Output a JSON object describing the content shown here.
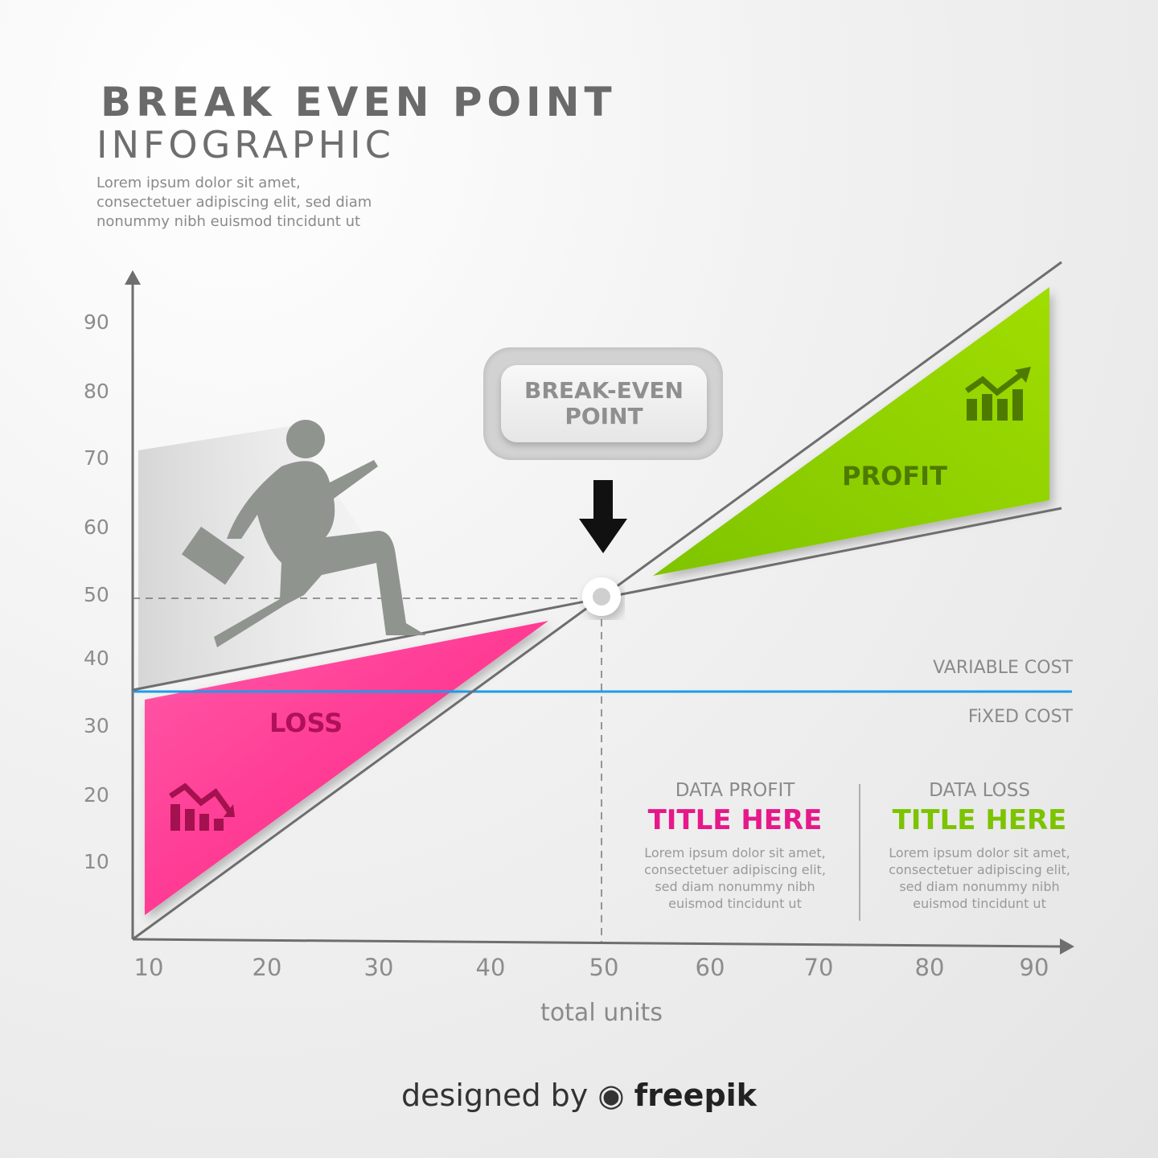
{
  "header": {
    "title": "BREAK EVEN POINT",
    "subtitle": "INFOGRAPHIC",
    "intro": "Lorem ipsum dolor sit amet, consectetuer adipiscing elit, sed diam nonummy nibh euismod tincidunt ut"
  },
  "chart_data": {
    "type": "line",
    "xlabel": "total units",
    "ylabel": "",
    "x_ticks": [
      "10",
      "20",
      "30",
      "40",
      "50",
      "60",
      "70",
      "80",
      "90"
    ],
    "y_ticks": [
      "10",
      "20",
      "30",
      "40",
      "50",
      "60",
      "70",
      "80",
      "90"
    ],
    "xlim": [
      10,
      90
    ],
    "ylim": [
      0,
      90
    ],
    "series": [
      {
        "key": "revenue",
        "x": [
          10,
          90
        ],
        "y": [
          0,
          95
        ]
      },
      {
        "key": "cost",
        "x": [
          10,
          90
        ],
        "y": [
          36,
          61
        ]
      },
      {
        "name": "FiXED COST",
        "x": [
          10,
          90
        ],
        "y": [
          36,
          36
        ]
      }
    ],
    "break_even": {
      "x": 50,
      "y": 50,
      "label": "BREAK-EVEN\nPOINT"
    },
    "line_labels": {
      "variable": "VARIABLE COST",
      "fixed": "FiXED COST"
    },
    "regions": {
      "loss": "LOSS",
      "profit": "PROFIT"
    },
    "colors": {
      "loss": "#ff2d8a",
      "profit": "#8ccc00",
      "fixed": "#1e9be8",
      "line": "#6e6e6e"
    }
  },
  "blocks": [
    {
      "heading": "DATA PROFIT",
      "title": "TITLE HERE",
      "color": "#e6188a",
      "text": "Lorem ipsum dolor sit amet, consectetuer adipiscing elit, sed diam nonummy nibh euismod tincidunt ut"
    },
    {
      "heading": "DATA LOSS",
      "title": "TITLE HERE",
      "color": "#7cc300",
      "text": "Lorem ipsum dolor sit amet, consectetuer adipiscing elit, sed diam nonummy nibh euismod tincidunt ut"
    }
  ],
  "icons": {
    "loss": "chart-down-icon",
    "profit": "chart-up-icon",
    "arrow": "arrow-down-icon",
    "figure": "running-businessman-icon"
  },
  "footer": {
    "prefix": "designed by",
    "brand": "freepik"
  }
}
